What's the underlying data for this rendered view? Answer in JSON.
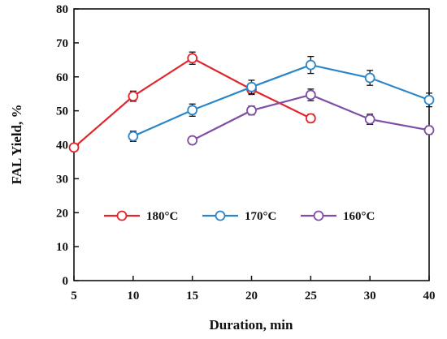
{
  "chart_data": {
    "type": "line",
    "xlabel": "Duration, min",
    "ylabel": "FAL Yield, %",
    "categories": [
      "5",
      "10",
      "15",
      "20",
      "25",
      "30",
      "40"
    ],
    "ylim": [
      0,
      80
    ],
    "yticks": [
      0,
      10,
      20,
      30,
      40,
      50,
      60,
      70,
      80
    ],
    "grid": false,
    "legend_position": "center",
    "series": [
      {
        "name": "180°C",
        "color": "#e0262b",
        "x": [
          "5",
          "10",
          "15",
          "20",
          "25"
        ],
        "values": [
          39.2,
          54.3,
          65.5,
          56.3,
          47.8
        ],
        "errors": [
          0.8,
          1.5,
          1.8,
          1.5,
          1.2
        ]
      },
      {
        "name": "170°C",
        "color": "#2a86c8",
        "x": [
          "10",
          "15",
          "20",
          "25",
          "30",
          "40"
        ],
        "values": [
          42.5,
          50.2,
          57.0,
          63.5,
          59.7,
          53.2
        ],
        "errors": [
          1.5,
          1.8,
          2.0,
          2.5,
          2.2,
          2.0
        ]
      },
      {
        "name": "160°C",
        "color": "#7f4fa8",
        "x": [
          "15",
          "20",
          "25",
          "30",
          "40"
        ],
        "values": [
          41.3,
          50.1,
          54.7,
          47.5,
          44.3
        ],
        "errors": [
          1.0,
          1.3,
          1.7,
          1.5,
          1.2
        ]
      }
    ]
  }
}
